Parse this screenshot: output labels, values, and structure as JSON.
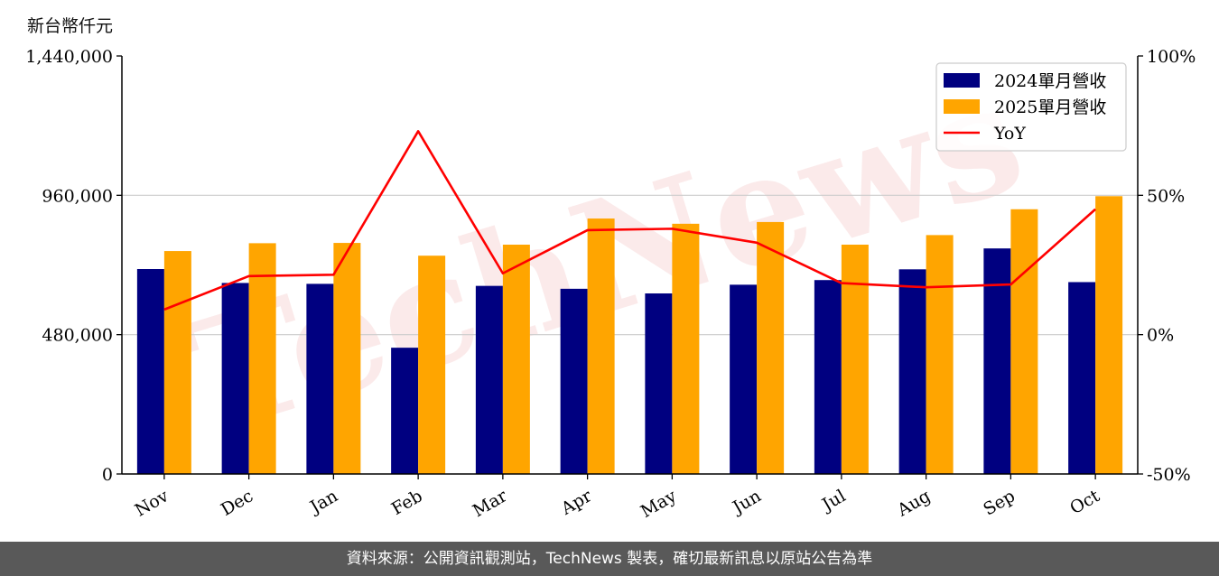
{
  "header": {
    "unit_label": "新台幣仟元"
  },
  "footer": {
    "text": "資料來源：公開資訊觀測站，TechNews 製表，確切最新訊息以原站公告為準"
  },
  "watermark": {
    "text": "TechNews"
  },
  "colors": {
    "series_2024": "#000080",
    "series_2025": "#FFA500",
    "yoy": "#FF0000",
    "grid": "#cccccc",
    "footer_bg": "#595959"
  },
  "chart_data": {
    "type": "bar",
    "categories": [
      "Nov",
      "Dec",
      "Jan",
      "Feb",
      "Mar",
      "Apr",
      "May",
      "Jun",
      "Jul",
      "Aug",
      "Sep",
      "Oct"
    ],
    "series": [
      {
        "name": "2024單月營收",
        "values": [
          706000,
          658000,
          655000,
          435000,
          648000,
          638000,
          622000,
          652000,
          668000,
          705000,
          777000,
          661000
        ]
      },
      {
        "name": "2025單月營收",
        "values": [
          768000,
          795000,
          796000,
          752000,
          790000,
          880000,
          862000,
          868000,
          790000,
          823000,
          912000,
          957000
        ]
      }
    ],
    "line_series": {
      "name": "YoY",
      "axis": "right",
      "values": [
        9,
        21,
        21.5,
        73,
        22,
        37.5,
        38,
        33,
        18.5,
        17,
        18,
        45
      ]
    },
    "ylim": [
      0,
      1440000
    ],
    "yticks": [
      0,
      480000,
      960000,
      1440000
    ],
    "ytick_labels": [
      "0",
      "480,000",
      "960,000",
      "1,440,000"
    ],
    "y2lim": [
      -50,
      100
    ],
    "y2ticks": [
      -50,
      0,
      50,
      100
    ],
    "y2tick_labels": [
      "-50%",
      "0%",
      "50%",
      "100%"
    ],
    "grid": "horizontal",
    "legend_position": "top-right"
  }
}
